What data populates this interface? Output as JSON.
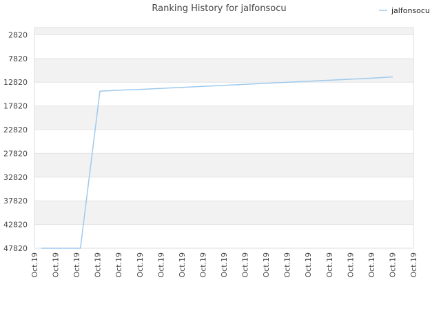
{
  "chart_data": {
    "type": "line",
    "title": "Ranking History for jalfonsocu",
    "xlabel": "",
    "ylabel": "",
    "y_inverted": true,
    "ylim": [
      1300,
      47820
    ],
    "y_ticks": [
      2820,
      7820,
      12820,
      17820,
      22820,
      27820,
      32820,
      37820,
      42820,
      47820
    ],
    "x_tick_labels": [
      "Oct.19",
      "Oct.19",
      "Oct.19",
      "Oct.19",
      "Oct.19",
      "Oct.19",
      "Oct.19",
      "Oct.19",
      "Oct.19",
      "Oct.19",
      "Oct.19",
      "Oct.19",
      "Oct.19",
      "Oct.19",
      "Oct.19",
      "Oct.19",
      "Oct.19",
      "Oct.19",
      "Oct.19"
    ],
    "grid": true,
    "legend_position": "top-right",
    "series": [
      {
        "name": "jalfonsocu",
        "color": "#9ec9ee",
        "values": [
          47820,
          47820,
          47820,
          14700,
          14500,
          14350,
          14150,
          13950,
          13750,
          13550,
          13350,
          13150,
          12950,
          12750,
          12550,
          12350,
          12150,
          11950,
          11700
        ]
      }
    ]
  }
}
